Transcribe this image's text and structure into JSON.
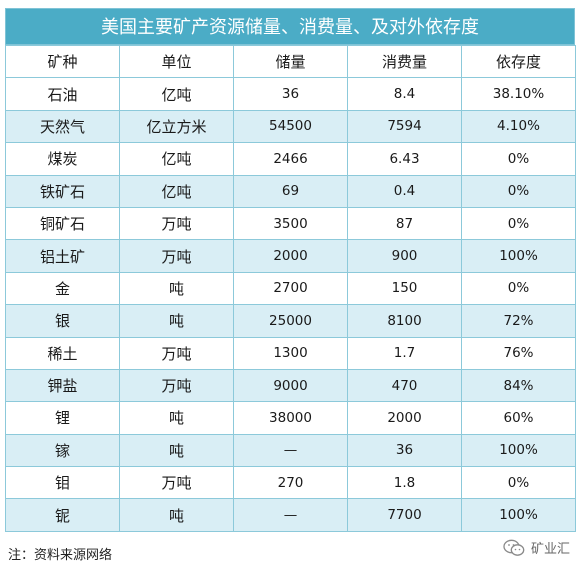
{
  "title": "美国主要矿产资源储量、消费量、及对外依存度",
  "headers": [
    "矿种",
    "单位",
    "储量",
    "消费量",
    "依存度"
  ],
  "rows": [
    [
      "石油",
      "亿吨",
      "36",
      "8.4",
      "38.10%"
    ],
    [
      "天然气",
      "亿立方米",
      "54500",
      "7594",
      "4.10%"
    ],
    [
      "煤炭",
      "亿吨",
      "2466",
      "6.43",
      "0%"
    ],
    [
      "铁矿石",
      "亿吨",
      "69",
      "0.4",
      "0%"
    ],
    [
      "铜矿石",
      "万吨",
      "3500",
      "87",
      "0%"
    ],
    [
      "铝土矿",
      "万吨",
      "2000",
      "900",
      "100%"
    ],
    [
      "金",
      "吨",
      "2700",
      "150",
      "0%"
    ],
    [
      "银",
      "吨",
      "25000",
      "8100",
      "72%"
    ],
    [
      "稀土",
      "万吨",
      "1300",
      "1.7",
      "76%"
    ],
    [
      "钾盐",
      "万吨",
      "9000",
      "470",
      "84%"
    ],
    [
      "锂",
      "吨",
      "38000",
      "2000",
      "60%"
    ],
    [
      "镓",
      "吨",
      "—",
      "36",
      "100%"
    ],
    [
      "钼",
      "万吨",
      "270",
      "1.8",
      "0%"
    ],
    [
      "铌",
      "吨",
      "—",
      "7700",
      "100%"
    ]
  ],
  "footer_note": "注：资料来源网络",
  "brand": {
    "icon": "wechat-icon",
    "name": "矿业汇"
  }
}
